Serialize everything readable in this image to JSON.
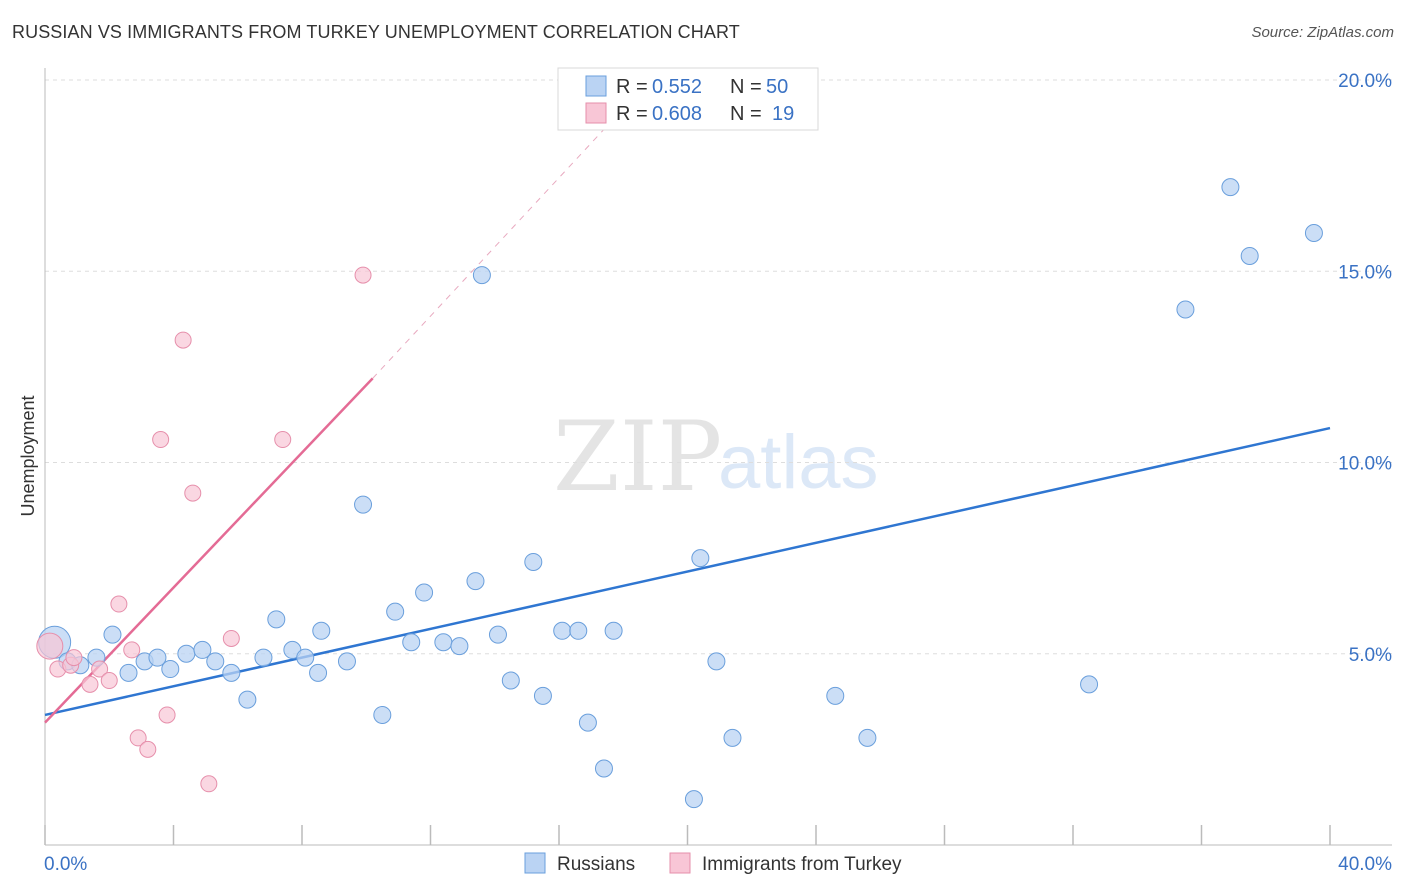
{
  "header": {
    "title": "RUSSIAN VS IMMIGRANTS FROM TURKEY UNEMPLOYMENT CORRELATION CHART",
    "source": "Source: ZipAtlas.com"
  },
  "watermark": {
    "zip": "ZIP",
    "atlas": "atlas"
  },
  "colors": {
    "blue_fill": "#bad3f3",
    "blue_stroke": "#6a9fdc",
    "blue_line": "#2f76d1",
    "pink_fill": "#f8c6d6",
    "pink_stroke": "#e68fab",
    "pink_line": "#e46b95",
    "grid": "#dddddd",
    "tick_text": "#3a72c4"
  },
  "legend": {
    "rows": [
      {
        "r_label": "R =",
        "r_value": "0.552",
        "n_label": "N =",
        "n_value": "50"
      },
      {
        "r_label": "R =",
        "r_value": "0.608",
        "n_label": "N =",
        "n_value": "19"
      }
    ]
  },
  "chart_data": {
    "type": "scatter",
    "title": "RUSSIAN VS IMMIGRANTS FROM TURKEY UNEMPLOYMENT CORRELATION CHART",
    "xlabel": "",
    "ylabel": "Unemployment",
    "xlim": [
      0,
      40
    ],
    "ylim": [
      0,
      20
    ],
    "x_tick_labels": [
      {
        "value": 0,
        "label": "0.0%"
      },
      {
        "value": 40,
        "label": "40.0%"
      }
    ],
    "y_tick_labels": [
      {
        "value": 5,
        "label": "5.0%"
      },
      {
        "value": 10,
        "label": "10.0%"
      },
      {
        "value": 15,
        "label": "15.0%"
      },
      {
        "value": 20,
        "label": "20.0%"
      }
    ],
    "series": [
      {
        "name": "Russians",
        "color": "#bad3f3",
        "r": 0.552,
        "n": 50,
        "trendline": {
          "x": [
            0,
            40
          ],
          "y": [
            3.4,
            10.9
          ]
        },
        "points": [
          [
            0.3,
            5.3
          ],
          [
            0.7,
            4.8
          ],
          [
            1.1,
            4.7
          ],
          [
            1.6,
            4.9
          ],
          [
            2.1,
            5.5
          ],
          [
            2.6,
            4.5
          ],
          [
            3.1,
            4.8
          ],
          [
            3.9,
            4.6
          ],
          [
            3.5,
            4.9
          ],
          [
            4.4,
            5.0
          ],
          [
            4.9,
            5.1
          ],
          [
            5.3,
            4.8
          ],
          [
            5.8,
            4.5
          ],
          [
            6.3,
            3.8
          ],
          [
            6.8,
            4.9
          ],
          [
            7.2,
            5.9
          ],
          [
            7.7,
            5.1
          ],
          [
            8.1,
            4.9
          ],
          [
            8.5,
            4.5
          ],
          [
            8.6,
            5.6
          ],
          [
            9.4,
            4.8
          ],
          [
            9.9,
            8.9
          ],
          [
            10.5,
            3.4
          ],
          [
            10.9,
            6.1
          ],
          [
            11.4,
            5.3
          ],
          [
            11.8,
            6.6
          ],
          [
            12.4,
            5.3
          ],
          [
            12.9,
            5.2
          ],
          [
            13.4,
            6.9
          ],
          [
            13.6,
            14.9
          ],
          [
            14.1,
            5.5
          ],
          [
            14.5,
            4.3
          ],
          [
            15.2,
            7.4
          ],
          [
            15.5,
            3.9
          ],
          [
            16.1,
            5.6
          ],
          [
            16.6,
            5.6
          ],
          [
            16.9,
            3.2
          ],
          [
            17.4,
            2.0
          ],
          [
            17.7,
            5.6
          ],
          [
            20.2,
            1.2
          ],
          [
            20.4,
            7.5
          ],
          [
            20.9,
            4.8
          ],
          [
            21.4,
            2.8
          ],
          [
            24.6,
            3.9
          ],
          [
            25.6,
            2.8
          ],
          [
            32.5,
            4.2
          ],
          [
            35.5,
            14.0
          ],
          [
            36.9,
            17.2
          ],
          [
            37.5,
            15.4
          ],
          [
            39.5,
            16.0
          ]
        ]
      },
      {
        "name": "Immigrants from Turkey",
        "color": "#f8c6d6",
        "r": 0.608,
        "n": 19,
        "trendline": {
          "x": [
            0,
            10.2
          ],
          "y": [
            3.2,
            12.2
          ],
          "dashed_extension": {
            "x": [
              10.2,
              17.5
            ],
            "y": [
              12.2,
              18.8
            ]
          }
        },
        "points": [
          [
            0.15,
            5.2
          ],
          [
            0.4,
            4.6
          ],
          [
            0.8,
            4.7
          ],
          [
            1.4,
            4.2
          ],
          [
            1.7,
            4.6
          ],
          [
            2.0,
            4.3
          ],
          [
            2.3,
            6.3
          ],
          [
            2.7,
            5.1
          ],
          [
            2.9,
            2.8
          ],
          [
            3.2,
            2.5
          ],
          [
            3.6,
            10.6
          ],
          [
            3.8,
            3.4
          ],
          [
            4.3,
            13.2
          ],
          [
            4.6,
            9.2
          ],
          [
            5.1,
            1.6
          ],
          [
            5.8,
            5.4
          ],
          [
            7.4,
            10.6
          ],
          [
            9.9,
            14.9
          ],
          [
            0.9,
            4.9
          ]
        ]
      }
    ]
  }
}
